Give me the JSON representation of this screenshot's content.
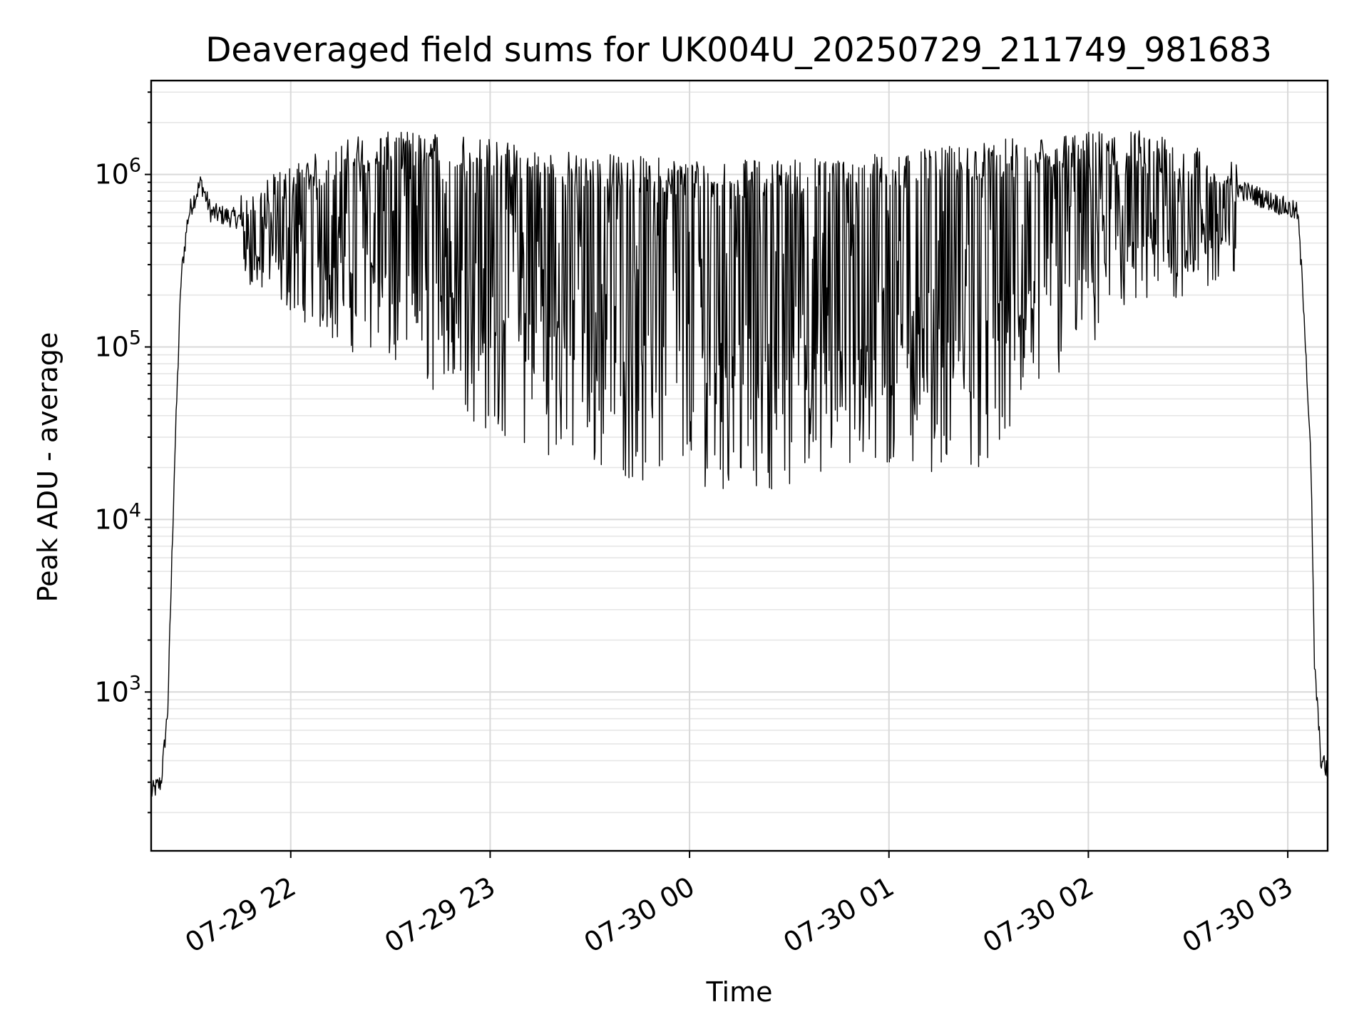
{
  "chart_data": {
    "type": "line",
    "title": "Deaveraged field sums for UK004U_20250729_211749_981683",
    "xlabel": "Time",
    "ylabel": "Peak ADU - average",
    "x_scale": "time",
    "y_scale": "log",
    "xlim": [
      "2025-07-29 21:18",
      "2025-07-30 03:12"
    ],
    "ylim": [
      120,
      3500000
    ],
    "x_ticks": [
      {
        "value": "2025-07-29 22:00",
        "label": "07-29 22"
      },
      {
        "value": "2025-07-29 23:00",
        "label": "07-29 23"
      },
      {
        "value": "2025-07-30 00:00",
        "label": "07-30 00"
      },
      {
        "value": "2025-07-30 01:00",
        "label": "07-30 01"
      },
      {
        "value": "2025-07-30 02:00",
        "label": "07-30 02"
      },
      {
        "value": "2025-07-30 03:00",
        "label": "07-30 03"
      }
    ],
    "y_ticks": [
      {
        "value": 1000,
        "base": "10",
        "exp": "3"
      },
      {
        "value": 10000,
        "base": "10",
        "exp": "4"
      },
      {
        "value": 100000,
        "base": "10",
        "exp": "5"
      },
      {
        "value": 1000000,
        "base": "10",
        "exp": "6"
      }
    ],
    "grid": true,
    "line_color": "#000000",
    "envelope": {
      "note": "dense jagged series: each sample alternates between an upper envelope and occasional deep dips",
      "series": [
        {
          "name": "upper",
          "x": [
            "2025-07-29 21:18",
            "2025-07-29 21:21",
            "2025-07-29 21:23",
            "2025-07-29 21:25",
            "2025-07-29 21:27",
            "2025-07-29 21:29",
            "2025-07-29 21:30",
            "2025-07-29 21:33",
            "2025-07-29 21:36",
            "2025-07-29 21:45",
            "2025-07-29 22:00",
            "2025-07-29 22:20",
            "2025-07-29 22:45",
            "2025-07-29 23:15",
            "2025-07-29 23:45",
            "2025-07-30 00:15",
            "2025-07-30 00:45",
            "2025-07-30 01:15",
            "2025-07-30 01:45",
            "2025-07-30 02:15",
            "2025-07-30 02:40",
            "2025-07-30 02:55",
            "2025-07-30 03:03",
            "2025-07-30 03:05",
            "2025-07-30 03:07",
            "2025-07-30 03:08",
            "2025-07-30 03:10",
            "2025-07-30 03:12"
          ],
          "y": [
            260,
            300,
            800,
            20000,
            250000,
            550000,
            650000,
            900000,
            600000,
            550000,
            800000,
            1200000,
            1300000,
            1000000,
            900000,
            850000,
            900000,
            1000000,
            1200000,
            1300000,
            900000,
            700000,
            600000,
            150000,
            20000,
            1500,
            400,
            350
          ]
        },
        {
          "name": "lower",
          "x": [
            "2025-07-29 21:45",
            "2025-07-29 22:15",
            "2025-07-29 22:40",
            "2025-07-29 23:00",
            "2025-07-29 23:30",
            "2025-07-29 23:50",
            "2025-07-30 00:10",
            "2025-07-30 00:30",
            "2025-07-30 01:00",
            "2025-07-30 01:30",
            "2025-07-30 01:50",
            "2025-07-30 02:15",
            "2025-07-30 02:45"
          ],
          "y": [
            250000,
            100000,
            60000,
            30000,
            20000,
            15000,
            15000,
            15000,
            18000,
            20000,
            60000,
            150000,
            250000
          ]
        }
      ]
    }
  }
}
